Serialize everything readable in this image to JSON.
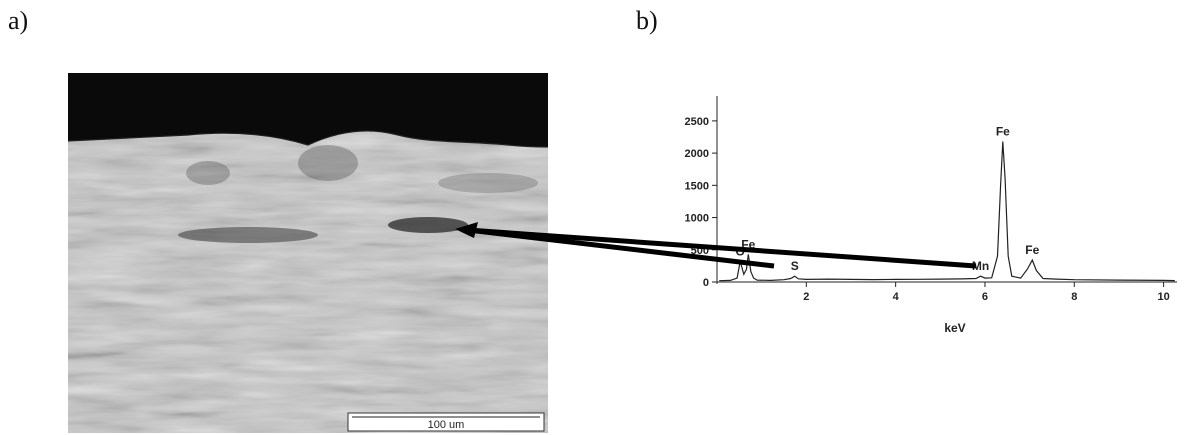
{
  "panels": {
    "a": {
      "label": "a)",
      "scale_bar": "100 um"
    },
    "b": {
      "label": "b)"
    }
  },
  "chart_data": {
    "type": "line",
    "xlabel": "keV",
    "ylabel": "",
    "xlim": [
      0,
      10.3
    ],
    "ylim": [
      0,
      2700
    ],
    "xticks": [
      2,
      4,
      6,
      8,
      10
    ],
    "yticks": [
      0,
      500,
      1000,
      1500,
      2000,
      2500
    ],
    "grid": false,
    "series": [
      {
        "points": [
          [
            0.05,
            20
          ],
          [
            0.3,
            25
          ],
          [
            0.45,
            60
          ],
          [
            0.52,
            320
          ],
          [
            0.6,
            120
          ],
          [
            0.66,
            200
          ],
          [
            0.7,
            430
          ],
          [
            0.76,
            160
          ],
          [
            0.82,
            60
          ],
          [
            0.9,
            30
          ],
          [
            1.2,
            25
          ],
          [
            1.5,
            35
          ],
          [
            1.65,
            55
          ],
          [
            1.74,
            90
          ],
          [
            1.82,
            50
          ],
          [
            2.0,
            40
          ],
          [
            2.5,
            45
          ],
          [
            3.0,
            40
          ],
          [
            3.5,
            38
          ],
          [
            4.0,
            40
          ],
          [
            4.5,
            42
          ],
          [
            5.0,
            45
          ],
          [
            5.5,
            48
          ],
          [
            5.8,
            55
          ],
          [
            5.9,
            90
          ],
          [
            6.0,
            60
          ],
          [
            6.15,
            65
          ],
          [
            6.28,
            400
          ],
          [
            6.35,
            1500
          ],
          [
            6.4,
            2180
          ],
          [
            6.45,
            1600
          ],
          [
            6.52,
            400
          ],
          [
            6.6,
            90
          ],
          [
            6.8,
            60
          ],
          [
            6.95,
            200
          ],
          [
            7.06,
            340
          ],
          [
            7.15,
            180
          ],
          [
            7.3,
            55
          ],
          [
            7.6,
            45
          ],
          [
            8.0,
            35
          ],
          [
            9.0,
            30
          ],
          [
            10.0,
            25
          ],
          [
            10.25,
            22
          ]
        ]
      }
    ],
    "annotations": [
      {
        "text": "O",
        "x": 0.52,
        "y": 320
      },
      {
        "text": "Fe",
        "x": 0.7,
        "y": 430
      },
      {
        "text": "S",
        "x": 1.74,
        "y": 90
      },
      {
        "text": "Mn",
        "x": 5.9,
        "y": 90
      },
      {
        "text": "Fe",
        "x": 6.4,
        "y": 2180
      },
      {
        "text": "Fe",
        "x": 7.06,
        "y": 340
      }
    ]
  }
}
